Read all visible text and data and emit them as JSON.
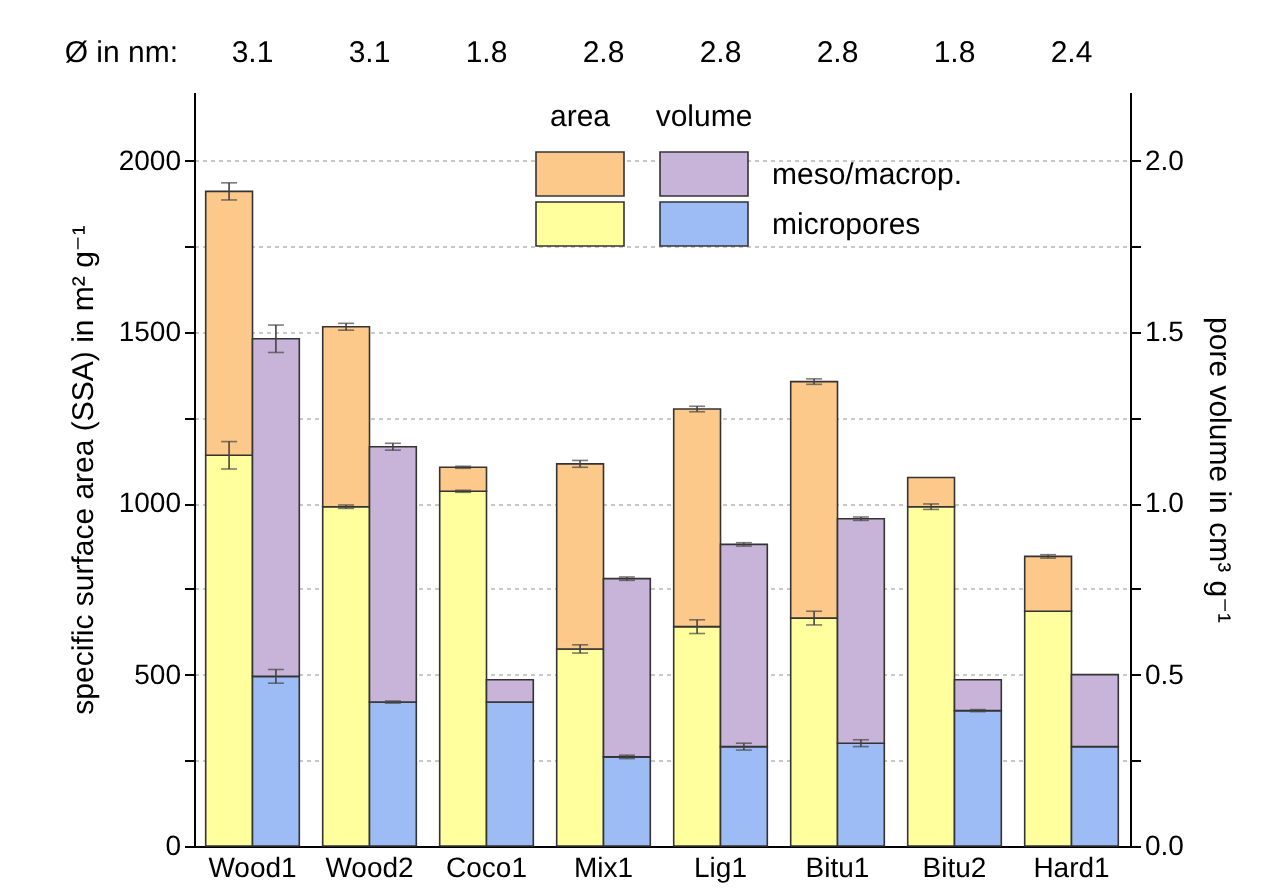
{
  "chart_data": {
    "type": "bar",
    "stacked": true,
    "categories": [
      "Wood1",
      "Wood2",
      "Coco1",
      "Mix1",
      "Lig1",
      "Bitu1",
      "Bitu2",
      "Hard1"
    ],
    "ylabel": "specific surface area (SSA) in m² g⁻¹",
    "y2label": "pore volume in cm³ g⁻¹",
    "ylim": [
      0,
      2200
    ],
    "yticks": [
      0,
      {
        "value": 250,
        "label": null
      },
      500,
      {
        "value": 750,
        "label": null
      },
      1000,
      {
        "value": 1250,
        "label": null
      },
      1500,
      {
        "value": 1750,
        "label": null
      },
      2000
    ],
    "y2lim": [
      0,
      2.2
    ],
    "y2ticks": [
      {
        "value": 0,
        "label": "0.0"
      },
      {
        "value": 0.25,
        "label": null
      },
      {
        "value": 0.5,
        "label": "0.5"
      },
      {
        "value": 0.75,
        "label": null
      },
      {
        "value": 1,
        "label": "1.0"
      },
      {
        "value": 1.25,
        "label": null
      },
      {
        "value": 1.5,
        "label": "1.5"
      },
      {
        "value": 1.75,
        "label": null
      },
      {
        "value": 2,
        "label": "2.0"
      }
    ],
    "grid": "y",
    "legend": "top",
    "series": [
      {
        "color": "#ffff9e",
        "values": [
          1140,
          990,
          1035,
          575,
          640,
          665,
          990,
          685
        ],
        "errors": [
          40,
          5,
          3,
          12,
          20,
          20,
          8,
          null
        ]
      },
      {
        "color": "#fdc98a",
        "values": [
          770,
          525,
          70,
          540,
          635,
          690,
          85,
          160
        ],
        "errors": [
          25,
          10,
          3,
          10,
          8,
          8,
          null,
          5
        ]
      },
      {
        "name": "micropores",
        "axis": "y2",
        "color": "#9dbcf5",
        "values": [
          0.495,
          0.42,
          0.42,
          0.26,
          0.29,
          0.3,
          0.395,
          0.29
        ],
        "errors": [
          0.02,
          0.003,
          null,
          0.005,
          0.01,
          0.01,
          0.003,
          null
        ]
      },
      {
        "name": "meso/macrop.",
        "axis": "y2",
        "color": "#c8b4d8",
        "values": [
          0.985,
          0.745,
          0.065,
          0.52,
          0.59,
          0.655,
          0.09,
          0.21
        ],
        "errors": [
          0.04,
          0.01,
          null,
          0.005,
          0.005,
          0.005,
          null,
          null
        ]
      }
    ],
    "annotations": [
      "Ø in nm:",
      "3.1",
      "3.1",
      "1.8",
      "2.8",
      "2.8",
      "2.8",
      "1.8",
      "2.4",
      "area",
      "volume"
    ]
  }
}
